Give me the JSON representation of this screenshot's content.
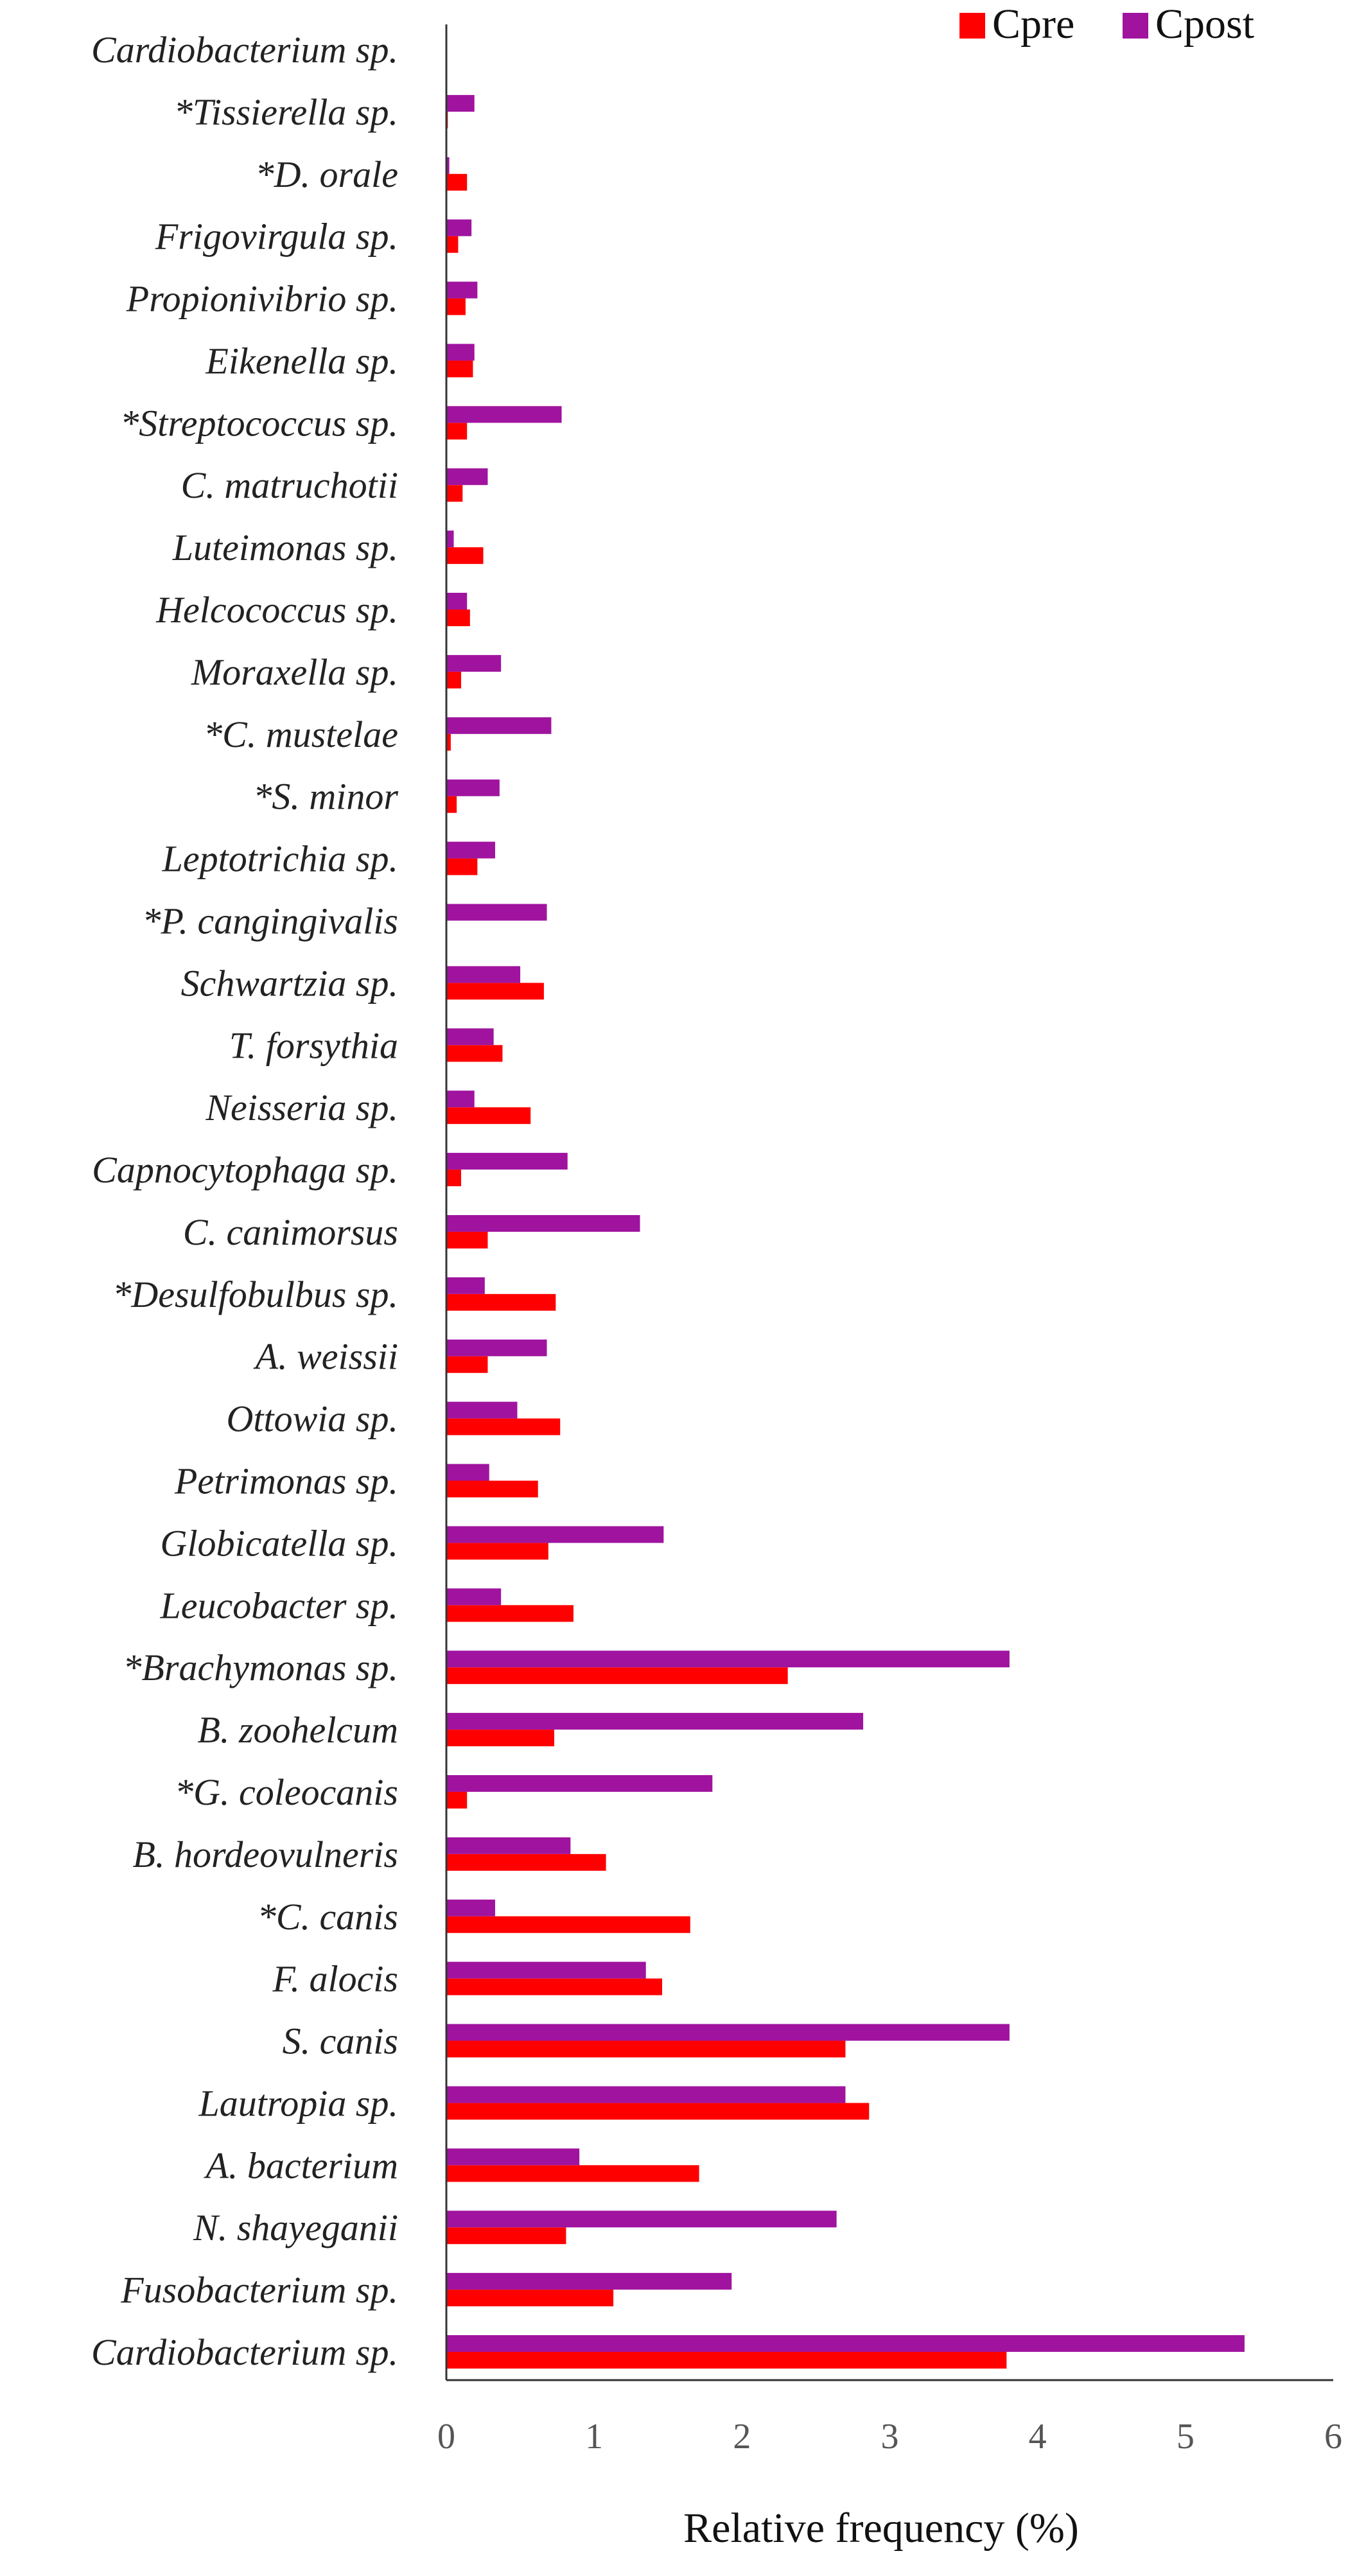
{
  "chart_data": {
    "type": "bar",
    "orientation": "horizontal",
    "xlabel": "Relative frequency (%)",
    "ylabel": "",
    "xlim": [
      0,
      6
    ],
    "xticks": [
      0,
      1,
      2,
      3,
      4,
      5,
      6
    ],
    "grid": false,
    "legend_position": "top-right",
    "colors": {
      "Cpre": "#ff0000",
      "Cpost": "#a0139f"
    },
    "categories": [
      "Cardiobacterium sp.",
      "*Tissierella sp.",
      "*D. orale",
      "Frigovirgula sp.",
      "Propionivibrio sp.",
      "Eikenella sp.",
      "*Streptococcus sp.",
      "C. matruchotii",
      "Luteimonas sp.",
      "Helcococcus sp.",
      "Moraxella sp.",
      "*C. mustelae",
      "*S. minor",
      "Leptotrichia sp.",
      "*P. cangingivalis",
      "Schwartzia sp.",
      "T. forsythia",
      "Neisseria sp.",
      "Capnocytophaga sp.",
      "C. canimorsus",
      "*Desulfobulbus sp.",
      "A. weissii",
      "Ottowia sp.",
      "Petrimonas sp.",
      "Globicatella sp.",
      "Leucobacter sp.",
      "*Brachymonas sp.",
      "B. zoohelcum",
      "*G. coleocanis",
      "B. hordeovulneris",
      "*C. canis",
      "F. alocis",
      "S. canis",
      "Lautropia sp.",
      "A. bacterium",
      "N. shayeganii",
      "Fusobacterium sp.",
      "Cardiobacterium sp."
    ],
    "series": [
      {
        "name": "Cpre",
        "values": [
          0,
          0.01,
          0.14,
          0.08,
          0.13,
          0.18,
          0.14,
          0.11,
          0.25,
          0.16,
          0.1,
          0.03,
          0.07,
          0.21,
          0,
          0.66,
          0.38,
          0.57,
          0.1,
          0.28,
          0.74,
          0.28,
          0.77,
          0.62,
          0.69,
          0.86,
          2.31,
          0.73,
          0.14,
          1.08,
          1.65,
          1.46,
          2.7,
          2.86,
          1.71,
          0.81,
          1.13,
          3.79
        ]
      },
      {
        "name": "Cpost",
        "values": [
          0,
          0.19,
          0.02,
          0.17,
          0.21,
          0.19,
          0.78,
          0.28,
          0.05,
          0.14,
          0.37,
          0.71,
          0.36,
          0.33,
          0.68,
          0.5,
          0.32,
          0.19,
          0.82,
          1.31,
          0.26,
          0.68,
          0.48,
          0.29,
          1.47,
          0.37,
          3.81,
          2.82,
          1.8,
          0.84,
          0.33,
          1.35,
          3.81,
          2.7,
          0.9,
          2.64,
          1.93,
          5.4
        ]
      }
    ]
  }
}
